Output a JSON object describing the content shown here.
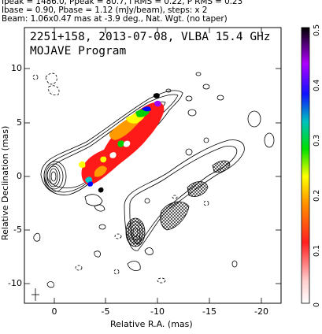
{
  "header": {
    "line1": "Ipeak = 1486.0, Ppeak = 80.7, I RMS = 0.22, P RMS = 0.23",
    "line2": "Ibase = 0.90, Pbase = 1.12 (mJy/beam), steps: x 2",
    "line3": "Beam: 1.06x0.47 mas at -3.9 deg., Nat. Wgt. (no taper)"
  },
  "plot": {
    "title_line1": "2251+158, 2013-07-08, VLBA 15.4 GHz",
    "title_line2": "MOJAVE Program",
    "xlabel": "Relative R.A. (mas)",
    "ylabel": "Relative Declination (mas)",
    "x_ticks": [
      "0",
      "-5",
      "-10",
      "-15",
      "-20"
    ],
    "y_ticks": [
      "10",
      "5",
      "0",
      "-5",
      "-10"
    ],
    "colorbar_ticks": [
      "0",
      "0.1",
      "0.2",
      "0.3",
      "0.4",
      "0.5"
    ],
    "colorbar_colors": [
      "#ffffff",
      "#ff3030",
      "#ff8c00",
      "#ffff00",
      "#00e000",
      "#00c8c8",
      "#0000ff",
      "#a000ff",
      "#000000"
    ]
  }
}
